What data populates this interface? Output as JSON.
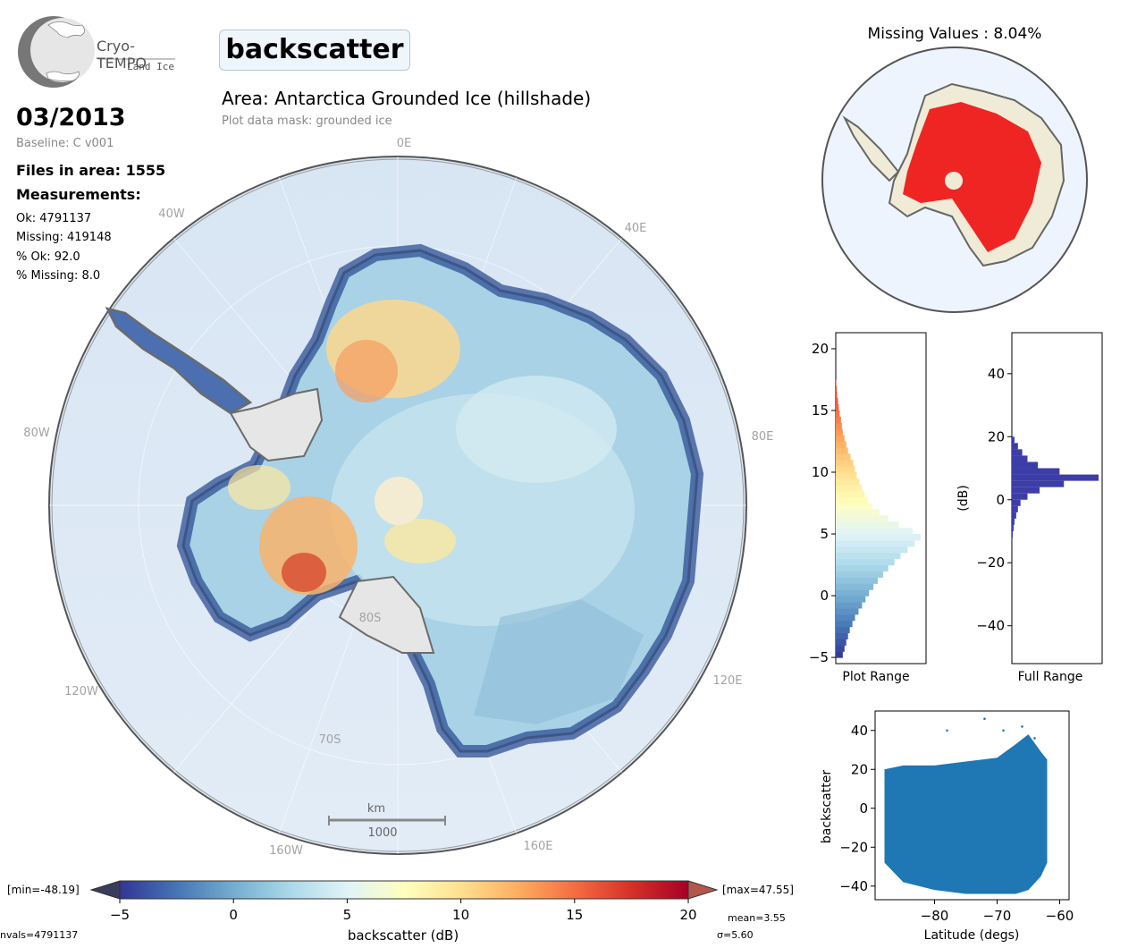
{
  "logo": {
    "line1": "Cryo-TEMPO",
    "line2": "Land Ice"
  },
  "parameter": "backscatter",
  "date": "03/2013",
  "baseline": "Baseline: C v001",
  "files_in_area": "Files in area: 1555",
  "measurements_title": "Measurements:",
  "stats": {
    "ok": "Ok: 4791137",
    "missing": "Missing: 419148",
    "pct_ok": "% Ok: 92.0",
    "pct_missing": "% Missing: 8.0"
  },
  "area_title": "Area: Antarctica Grounded Ice (hillshade)",
  "mask_note": "Plot data mask: grounded ice",
  "longitude_labels": {
    "e0": "0E",
    "w40": "40W",
    "e40": "40E",
    "w80": "80W",
    "e80": "80E",
    "w120": "120W",
    "e120": "120E",
    "w160": "160W",
    "e160": "160E"
  },
  "latitude_labels": {
    "s80": "80S",
    "s70": "70S"
  },
  "scalebar": {
    "unit": "km",
    "value": "1000"
  },
  "missing_title": "Missing Values : 8.04%",
  "colorbar": {
    "min_label": "[min=-48.19]",
    "max_label": "[max=47.55]",
    "label": "backscatter (dB)",
    "ticks": [
      "-5",
      "0",
      "5",
      "10",
      "15",
      "20"
    ],
    "nvals": "nvals=4791137",
    "mean": "mean=3.55",
    "sigma": "σ=5.60",
    "colors": [
      "#313695",
      "#4575b4",
      "#74add1",
      "#abd9e9",
      "#e0f3f8",
      "#ffffbf",
      "#fee090",
      "#fdae61",
      "#f46d43",
      "#d73027",
      "#a50026"
    ],
    "under_color": "#3a3c5a",
    "over_color": "#b3574d"
  },
  "chart_data": [
    {
      "type": "bar",
      "title": "",
      "xlabel": "Plot Range",
      "ylabel": "",
      "orientation": "horizontal",
      "ylim": [
        -5.5,
        21.3
      ],
      "ticks": [
        -5,
        0,
        5,
        10,
        15,
        20
      ],
      "bins": [
        -5,
        -4.5,
        -4,
        -3.5,
        -3,
        -2.5,
        -2,
        -1.5,
        -1,
        -0.5,
        0,
        0.5,
        1,
        1.5,
        2,
        2.5,
        3,
        3.5,
        4,
        4.5,
        5,
        5.5,
        6,
        6.5,
        7,
        7.5,
        8,
        8.5,
        9,
        9.5,
        10,
        10.5,
        11,
        11.5,
        12,
        12.5,
        13,
        13.5,
        14,
        14.5,
        15,
        15.5,
        16,
        16.5,
        17
      ],
      "values": [
        0.08,
        0.1,
        0.12,
        0.14,
        0.16,
        0.19,
        0.22,
        0.26,
        0.3,
        0.34,
        0.38,
        0.43,
        0.48,
        0.54,
        0.6,
        0.67,
        0.74,
        0.82,
        0.9,
        0.97,
        0.88,
        0.72,
        0.6,
        0.5,
        0.42,
        0.37,
        0.33,
        0.3,
        0.27,
        0.24,
        0.22,
        0.2,
        0.17,
        0.14,
        0.12,
        0.1,
        0.08,
        0.07,
        0.06,
        0.045,
        0.035,
        0.025,
        0.015,
        0.01,
        0.005
      ]
    },
    {
      "type": "bar",
      "title": "",
      "xlabel": "Full Range",
      "ylabel": "(dB)",
      "orientation": "horizontal",
      "ylim": [
        -52,
        53
      ],
      "ticks": [
        -40,
        -20,
        0,
        20,
        40
      ],
      "bins": [
        -12,
        -10,
        -8,
        -6,
        -4,
        -2,
        0,
        2,
        4,
        6,
        8,
        10,
        12,
        14,
        16,
        18
      ],
      "values": [
        0.01,
        0.02,
        0.03,
        0.05,
        0.07,
        0.1,
        0.18,
        0.32,
        0.6,
        1.0,
        0.55,
        0.3,
        0.18,
        0.12,
        0.07,
        0.03
      ],
      "bar_color": "#3d3da8"
    },
    {
      "type": "scatter",
      "title": "",
      "xlabel": "Latitude (degs)",
      "ylabel": "backscatter",
      "xlim": [
        -89.5,
        -58.5
      ],
      "ylim": [
        -47,
        50
      ],
      "xticks": [
        -80,
        -70,
        -60
      ],
      "yticks": [
        -40,
        -20,
        0,
        20,
        40
      ],
      "point_color": "#1f77b4",
      "envelope": {
        "lat": [
          -88,
          -85,
          -80,
          -75,
          -70,
          -67,
          -65,
          -63,
          -62
        ],
        "ymax": [
          20,
          22,
          22,
          24,
          26,
          33,
          38,
          29,
          25
        ],
        "ymin": [
          -28,
          -38,
          -42,
          -44,
          -44,
          -44,
          -42,
          -35,
          -28
        ],
        "outliers": [
          [
            -72,
            46
          ],
          [
            -78,
            40
          ],
          [
            -66,
            42
          ],
          [
            -69,
            40
          ],
          [
            -64,
            36
          ]
        ]
      }
    }
  ]
}
